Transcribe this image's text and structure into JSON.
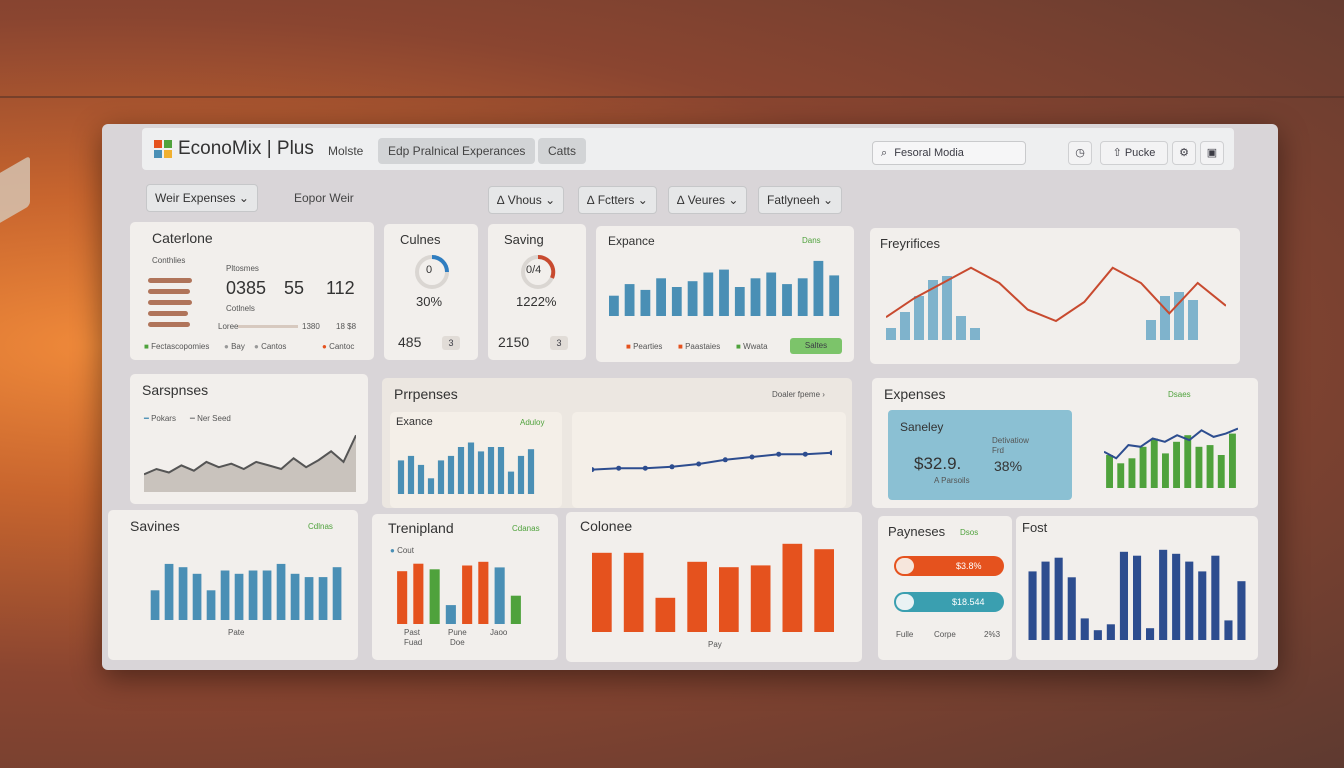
{
  "header": {
    "brand": "EconoMix | Plus",
    "nav_mobile": "Molste",
    "nav_tab": "Edp Pralnical Experances",
    "nav_carts": "Catts",
    "search_placeholder": "Fesoral Modia",
    "profile_label": "Pucke"
  },
  "filters": {
    "expenses_dropdown": "Weir Expenses",
    "export_link": "Eopor Weir",
    "views": "Vhous",
    "factors": "Fctters",
    "veures": "Veures",
    "fatlyneeh": "Fatlyneeh"
  },
  "categories_card": {
    "title": "Caterlone",
    "sub": "Conthlies",
    "payments_label": "Pltosmes",
    "v1": "0385",
    "v2": "55",
    "v3": "112",
    "cr1": "Cotlnels",
    "bar_a": "1380",
    "bar_b": "18 $8",
    "legend_a": "Fectascopomies",
    "legend_b": "Bay",
    "legend_c": "Cantos",
    "legend_d": "Cantoc",
    "row_label": "Loree"
  },
  "culnes_card": {
    "title": "Culnes",
    "gauge": "0",
    "pct": "30%",
    "value": "485",
    "badge": "3"
  },
  "saving_card": {
    "title": "Saving",
    "gauge": "0/4",
    "pct": "1222%",
    "value": "2150",
    "badge": "3"
  },
  "expense_card": {
    "title": "Expance",
    "badge": "Dans",
    "legend": [
      "Pearties",
      "Paastaies",
      "Wwata"
    ],
    "cta": "Saltes"
  },
  "frequencies_card": {
    "title": "Freyrifices"
  },
  "sarpenses_card": {
    "title": "Sarspnses",
    "legend_a": "Pokars",
    "legend_b": "Ner Seed"
  },
  "purposes_card": {
    "title": "Prrpenses",
    "link": "Doaler fpeme"
  },
  "exance_sub": {
    "title": "Exance",
    "badge": "Aduloy"
  },
  "expenses_card": {
    "title": "Expenses",
    "badge": "Dsaes"
  },
  "saneley_box": {
    "title": "Saneley",
    "amount": "$32.9.",
    "sub": "A Parsoils",
    "label": "Detivatiow",
    "label2": "Frd",
    "pct": "38%"
  },
  "savines_card": {
    "title": "Savines",
    "badge": "Cdlnas",
    "xlabel": "Pate"
  },
  "trend_card": {
    "title": "Trenipland",
    "legend": "Cout",
    "badge": "Cdanas",
    "xl1": "Past",
    "xl2": "Pune",
    "xl3": "Jaoo",
    "xl4": "Fuad",
    "xl5": "Doe"
  },
  "colonee_card": {
    "title": "Colonee",
    "xlabel": "Pay"
  },
  "payneses_card": {
    "title": "Payneses",
    "badge": "Dsos",
    "bar1": "$3.8%",
    "bar2": "$18.544",
    "foot_a": "Fulle",
    "foot_b": "Corpe",
    "foot_c": "2%3"
  },
  "fost_card": {
    "title": "Fost"
  },
  "chart_data": [
    {
      "type": "bar",
      "title": "Expance",
      "values": [
        14,
        22,
        18,
        26,
        20,
        24,
        30,
        32,
        20,
        26,
        30,
        22,
        26,
        38,
        28
      ]
    },
    {
      "type": "line",
      "title": "Freyrifices",
      "values": [
        12,
        22,
        30,
        38,
        30,
        16,
        10,
        20,
        38,
        30,
        14,
        30,
        18
      ],
      "bar_values": [
        6,
        14,
        22,
        30,
        32,
        12,
        6,
        10,
        22,
        24,
        20
      ]
    },
    {
      "type": "area",
      "title": "Sarspnses",
      "values": [
        20,
        26,
        22,
        30,
        24,
        34,
        28,
        32,
        26,
        34,
        30,
        26,
        38,
        28,
        36,
        46,
        34,
        64
      ]
    },
    {
      "type": "bar",
      "title": "Savines",
      "values": [
        18,
        34,
        32,
        28,
        18,
        30,
        28,
        30,
        30,
        34,
        28,
        26,
        26,
        32
      ]
    },
    {
      "type": "bar",
      "title": "Exance",
      "values": [
        30,
        34,
        26,
        14,
        30,
        34,
        42,
        46,
        38,
        42,
        42,
        20,
        34,
        40
      ]
    },
    {
      "type": "line",
      "title": "Prrpenses",
      "values": [
        16,
        17,
        17,
        18,
        20,
        23,
        25,
        27,
        27,
        28
      ]
    },
    {
      "type": "bar",
      "title": "Trenipland",
      "values": [
        56,
        64,
        58,
        20,
        62,
        66,
        60,
        30
      ]
    },
    {
      "type": "bar",
      "title": "Colonee",
      "values": [
        88,
        88,
        38,
        78,
        72,
        74,
        98,
        92
      ]
    },
    {
      "type": "bar",
      "title": "Expenses",
      "values": [
        40,
        30,
        36,
        50,
        60,
        42,
        56,
        64,
        50,
        52,
        40,
        66
      ],
      "line_values": [
        44,
        36,
        52,
        50,
        60,
        56,
        64,
        58,
        70,
        62,
        66,
        72
      ]
    },
    {
      "type": "bar",
      "title": "Fost",
      "values": [
        70,
        80,
        84,
        64,
        22,
        10,
        16,
        90,
        86,
        12,
        92,
        88,
        80,
        70,
        86,
        20,
        60
      ]
    }
  ],
  "colors": {
    "blue": "#4a8fb5",
    "orange": "#e5521e",
    "green": "#4fa23c",
    "navy": "#2d4d8f",
    "red": "#c84a2f"
  }
}
